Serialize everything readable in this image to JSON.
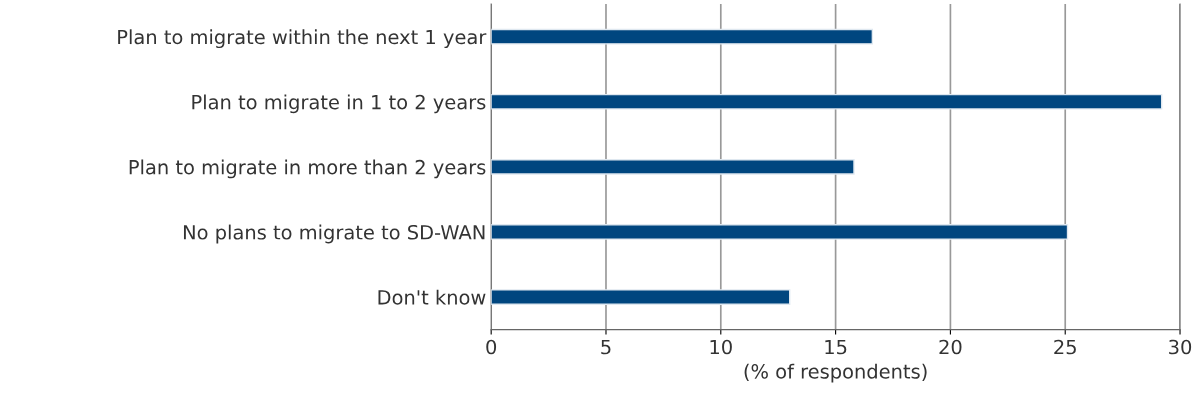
{
  "chart_data": {
    "type": "bar",
    "orientation": "horizontal",
    "xlabel": "(% of respondents)",
    "categories": [
      "Plan to migrate within the next 1 year",
      "Plan to migrate in 1 to 2 years",
      "Plan to migrate in more than 2 years",
      "No plans to migrate to SD-WAN",
      "Don't know"
    ],
    "values": [
      16.6,
      29.2,
      15.8,
      25.1,
      13.0
    ],
    "color": "#00467f",
    "xlim": [
      0,
      30
    ],
    "xticks": [
      0,
      5,
      10,
      15,
      20,
      25,
      30
    ],
    "grid": "x"
  }
}
